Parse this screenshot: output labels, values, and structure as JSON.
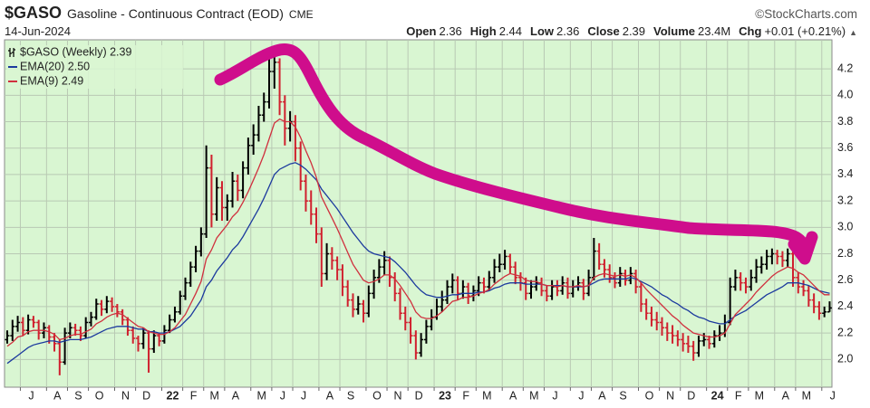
{
  "chart_data": {
    "type": "ohlc",
    "title": "$GASO",
    "subtitle": "Gasoline - Continuous Contract (EOD)",
    "exchange": "CME",
    "source": "©StockCharts.com",
    "date": "14-Jun-2024",
    "quote": [
      {
        "label": "Open",
        "value": 2.36
      },
      {
        "label": "High",
        "value": 2.44
      },
      {
        "label": "Low",
        "value": 2.36
      },
      {
        "label": "Close",
        "value": 2.39
      },
      {
        "label": "Volume",
        "value": "23.4M"
      },
      {
        "label": "Chg",
        "value": "+0.01 (+0.21%)"
      }
    ],
    "categories": [
      null,
      null,
      null,
      "J",
      null,
      null,
      null,
      null,
      "A",
      null,
      null,
      null,
      "S",
      null,
      null,
      null,
      "O",
      null,
      null,
      null,
      null,
      "N",
      null,
      null,
      null,
      "D",
      null,
      null,
      null,
      null,
      "22",
      null,
      null,
      null,
      "F",
      null,
      null,
      null,
      "M",
      null,
      null,
      null,
      "A",
      null,
      null,
      null,
      null,
      "M",
      null,
      null,
      null,
      "J",
      null,
      null,
      null,
      "J",
      null,
      null,
      null,
      null,
      "A",
      null,
      null,
      null,
      "S",
      null,
      null,
      null,
      null,
      "O",
      null,
      null,
      null,
      "N",
      null,
      null,
      null,
      "D",
      null,
      null,
      null,
      null,
      "23",
      null,
      null,
      null,
      "F",
      null,
      null,
      null,
      "M",
      null,
      null,
      null,
      null,
      "A",
      null,
      null,
      null,
      "M",
      null,
      null,
      null,
      "J",
      null,
      null,
      null,
      null,
      "J",
      null,
      null,
      null,
      "A",
      null,
      null,
      null,
      "S",
      null,
      null,
      null,
      null,
      "O",
      null,
      null,
      null,
      "N",
      null,
      null,
      null,
      "D",
      null,
      null,
      null,
      null,
      "24",
      null,
      null,
      null,
      "F",
      null,
      null,
      null,
      "M",
      null,
      null,
      null,
      null,
      "A",
      null,
      null,
      null,
      "M",
      null,
      null,
      null,
      null,
      "J",
      null
    ],
    "ylim": [
      1.79,
      4.42
    ],
    "yticks": [
      {
        "value": 2,
        "label": "2.0"
      },
      2.2,
      2.4,
      2.6,
      2.8,
      {
        "value": 3,
        "label": "3.0"
      },
      3.2,
      3.4,
      3.6,
      3.8,
      {
        "value": 4,
        "label": "4.0"
      },
      4.2
    ],
    "grid": true,
    "background": "#d9f6d2",
    "series": [
      {
        "name": "$GASO (Weekly) 2.39",
        "type": "ohlc",
        "up_color": "#000000",
        "down_color": "#d0202e",
        "open": [
          2.15,
          2.18,
          2.25,
          2.28,
          2.22,
          2.3,
          2.28,
          2.2,
          2.24,
          2.17,
          2.12,
          1.98,
          2.2,
          2.24,
          2.22,
          2.18,
          2.28,
          2.32,
          2.42,
          2.38,
          2.44,
          2.4,
          2.36,
          2.3,
          2.22,
          2.16,
          2.12,
          2.2,
          2.08,
          2.18,
          2.14,
          2.22,
          2.3,
          2.36,
          2.48,
          2.58,
          2.7,
          2.82,
          2.95,
          3.45,
          3.1,
          3.3,
          3.15,
          3.2,
          3.35,
          3.28,
          3.45,
          3.62,
          3.7,
          3.85,
          3.95,
          4.18,
          4.25,
          3.95,
          3.75,
          3.8,
          3.6,
          3.35,
          3.2,
          3.1,
          2.95,
          2.65,
          2.8,
          2.75,
          2.68,
          2.55,
          2.45,
          2.38,
          2.42,
          2.35,
          2.5,
          2.62,
          2.7,
          2.75,
          2.62,
          2.5,
          2.35,
          2.28,
          2.18,
          2.05,
          2.15,
          2.25,
          2.32,
          2.4,
          2.45,
          2.55,
          2.6,
          2.5,
          2.55,
          2.48,
          2.52,
          2.58,
          2.55,
          2.62,
          2.7,
          2.72,
          2.78,
          2.7,
          2.62,
          2.58,
          2.5,
          2.55,
          2.58,
          2.52,
          2.48,
          2.55,
          2.52,
          2.58,
          2.5,
          2.55,
          2.58,
          2.5,
          2.62,
          2.82,
          2.72,
          2.68,
          2.62,
          2.58,
          2.65,
          2.6,
          2.65,
          2.55,
          2.42,
          2.35,
          2.3,
          2.28,
          2.24,
          2.2,
          2.18,
          2.15,
          2.12,
          2.1,
          2.05,
          2.14,
          2.15,
          2.12,
          2.18,
          2.2,
          2.28,
          2.55,
          2.62,
          2.58,
          2.55,
          2.62,
          2.7,
          2.72,
          2.78,
          2.8,
          2.78,
          2.75,
          2.8,
          2.62,
          2.55,
          2.52,
          2.45,
          2.4,
          2.35,
          2.36
        ],
        "high": [
          2.22,
          2.3,
          2.33,
          2.32,
          2.34,
          2.33,
          2.3,
          2.28,
          2.26,
          2.2,
          2.15,
          2.24,
          2.28,
          2.27,
          2.25,
          2.32,
          2.36,
          2.46,
          2.45,
          2.48,
          2.47,
          2.42,
          2.38,
          2.32,
          2.25,
          2.18,
          2.24,
          2.22,
          2.22,
          2.2,
          2.26,
          2.34,
          2.4,
          2.52,
          2.62,
          2.74,
          2.86,
          3.0,
          3.62,
          3.55,
          3.38,
          3.35,
          3.25,
          3.42,
          3.4,
          3.5,
          3.68,
          3.78,
          3.92,
          4.02,
          4.3,
          4.33,
          4.28,
          4.0,
          3.88,
          3.85,
          3.65,
          3.4,
          3.28,
          3.15,
          3.0,
          2.88,
          2.85,
          2.78,
          2.72,
          2.6,
          2.5,
          2.48,
          2.45,
          2.56,
          2.68,
          2.76,
          2.82,
          2.78,
          2.66,
          2.54,
          2.4,
          2.32,
          2.22,
          2.2,
          2.3,
          2.38,
          2.46,
          2.52,
          2.6,
          2.65,
          2.63,
          2.6,
          2.58,
          2.56,
          2.63,
          2.62,
          2.67,
          2.76,
          2.8,
          2.83,
          2.8,
          2.74,
          2.66,
          2.62,
          2.6,
          2.63,
          2.62,
          2.56,
          2.6,
          2.6,
          2.63,
          2.62,
          2.6,
          2.63,
          2.61,
          2.68,
          2.92,
          2.88,
          2.76,
          2.72,
          2.66,
          2.7,
          2.68,
          2.7,
          2.68,
          2.58,
          2.46,
          2.4,
          2.36,
          2.32,
          2.28,
          2.26,
          2.22,
          2.2,
          2.18,
          2.14,
          2.18,
          2.2,
          2.18,
          2.22,
          2.26,
          2.34,
          2.62,
          2.68,
          2.66,
          2.62,
          2.68,
          2.76,
          2.78,
          2.83,
          2.84,
          2.83,
          2.82,
          2.84,
          2.82,
          2.66,
          2.6,
          2.56,
          2.5,
          2.44,
          2.4,
          2.44
        ],
        "low": [
          2.12,
          2.14,
          2.21,
          2.18,
          2.19,
          2.24,
          2.15,
          2.16,
          2.12,
          2.06,
          1.88,
          1.96,
          2.16,
          2.18,
          2.14,
          2.16,
          2.25,
          2.3,
          2.33,
          2.35,
          2.36,
          2.32,
          2.26,
          2.18,
          2.12,
          2.06,
          2.08,
          1.9,
          2.05,
          2.1,
          2.12,
          2.2,
          2.28,
          2.34,
          2.45,
          2.55,
          2.66,
          2.78,
          2.92,
          3.0,
          3.05,
          3.05,
          3.05,
          3.15,
          3.2,
          3.22,
          3.4,
          3.55,
          3.65,
          3.8,
          3.9,
          4.05,
          3.85,
          3.62,
          3.65,
          3.5,
          3.28,
          3.12,
          3.02,
          2.88,
          2.55,
          2.6,
          2.68,
          2.6,
          2.48,
          2.4,
          2.32,
          2.34,
          2.28,
          2.32,
          2.46,
          2.58,
          2.64,
          2.55,
          2.44,
          2.3,
          2.22,
          2.12,
          2.0,
          2.02,
          2.12,
          2.22,
          2.3,
          2.36,
          2.42,
          2.5,
          2.45,
          2.46,
          2.42,
          2.44,
          2.48,
          2.5,
          2.52,
          2.58,
          2.66,
          2.68,
          2.65,
          2.57,
          2.52,
          2.45,
          2.46,
          2.52,
          2.48,
          2.44,
          2.45,
          2.48,
          2.49,
          2.46,
          2.47,
          2.52,
          2.45,
          2.48,
          2.6,
          2.68,
          2.62,
          2.58,
          2.54,
          2.55,
          2.56,
          2.57,
          2.5,
          2.36,
          2.3,
          2.25,
          2.22,
          2.18,
          2.14,
          2.12,
          2.1,
          2.06,
          2.05,
          1.99,
          2.02,
          2.1,
          2.08,
          2.09,
          2.14,
          2.17,
          2.26,
          2.52,
          2.52,
          2.5,
          2.52,
          2.58,
          2.65,
          2.68,
          2.72,
          2.72,
          2.7,
          2.7,
          2.55,
          2.5,
          2.48,
          2.4,
          2.35,
          2.3,
          2.32,
          2.36
        ],
        "close": [
          2.18,
          2.25,
          2.28,
          2.22,
          2.3,
          2.28,
          2.2,
          2.24,
          2.17,
          2.12,
          1.98,
          2.2,
          2.24,
          2.22,
          2.18,
          2.28,
          2.32,
          2.42,
          2.38,
          2.44,
          2.4,
          2.36,
          2.3,
          2.22,
          2.16,
          2.12,
          2.2,
          2.08,
          2.18,
          2.14,
          2.22,
          2.3,
          2.36,
          2.48,
          2.58,
          2.7,
          2.82,
          2.95,
          3.45,
          3.1,
          3.3,
          3.15,
          3.2,
          3.35,
          3.28,
          3.45,
          3.62,
          3.7,
          3.85,
          3.95,
          4.18,
          4.25,
          3.95,
          3.75,
          3.8,
          3.6,
          3.35,
          3.2,
          3.1,
          2.95,
          2.65,
          2.8,
          2.75,
          2.68,
          2.55,
          2.45,
          2.38,
          2.42,
          2.35,
          2.5,
          2.62,
          2.7,
          2.75,
          2.62,
          2.5,
          2.35,
          2.28,
          2.18,
          2.05,
          2.15,
          2.25,
          2.32,
          2.4,
          2.45,
          2.55,
          2.6,
          2.5,
          2.55,
          2.48,
          2.52,
          2.58,
          2.55,
          2.62,
          2.7,
          2.72,
          2.78,
          2.7,
          2.62,
          2.58,
          2.5,
          2.55,
          2.58,
          2.52,
          2.48,
          2.55,
          2.52,
          2.58,
          2.5,
          2.55,
          2.58,
          2.5,
          2.62,
          2.82,
          2.72,
          2.68,
          2.62,
          2.58,
          2.65,
          2.6,
          2.65,
          2.55,
          2.42,
          2.35,
          2.3,
          2.28,
          2.24,
          2.2,
          2.18,
          2.15,
          2.12,
          2.1,
          2.05,
          2.14,
          2.15,
          2.12,
          2.18,
          2.2,
          2.28,
          2.55,
          2.62,
          2.58,
          2.55,
          2.62,
          2.7,
          2.72,
          2.78,
          2.8,
          2.78,
          2.75,
          2.8,
          2.62,
          2.55,
          2.52,
          2.45,
          2.4,
          2.35,
          2.36,
          2.39
        ]
      },
      {
        "name": "EMA(20) 2.50",
        "type": "line",
        "color": "#1c3a9e",
        "values": [
          1.97,
          2.0,
          2.03,
          2.06,
          2.09,
          2.11,
          2.12,
          2.13,
          2.14,
          2.14,
          2.13,
          2.14,
          2.15,
          2.15,
          2.15,
          2.16,
          2.17,
          2.19,
          2.21,
          2.23,
          2.24,
          2.25,
          2.25,
          2.25,
          2.24,
          2.23,
          2.23,
          2.21,
          2.21,
          2.2,
          2.2,
          2.21,
          2.23,
          2.25,
          2.29,
          2.33,
          2.39,
          2.45,
          2.55,
          2.6,
          2.67,
          2.72,
          2.77,
          2.83,
          2.87,
          2.93,
          3.0,
          3.07,
          3.14,
          3.22,
          3.31,
          3.4,
          3.44,
          3.46,
          3.48,
          3.49,
          3.47,
          3.44,
          3.4,
          3.36,
          3.29,
          3.24,
          3.19,
          3.14,
          3.08,
          3.02,
          2.96,
          2.91,
          2.86,
          2.82,
          2.8,
          2.79,
          2.78,
          2.77,
          2.74,
          2.7,
          2.66,
          2.61,
          2.56,
          2.52,
          2.49,
          2.48,
          2.47,
          2.47,
          2.48,
          2.49,
          2.49,
          2.5,
          2.5,
          2.5,
          2.51,
          2.51,
          2.52,
          2.54,
          2.55,
          2.57,
          2.58,
          2.58,
          2.58,
          2.57,
          2.57,
          2.57,
          2.57,
          2.56,
          2.56,
          2.56,
          2.56,
          2.55,
          2.55,
          2.55,
          2.55,
          2.56,
          2.58,
          2.6,
          2.61,
          2.61,
          2.61,
          2.61,
          2.61,
          2.62,
          2.61,
          2.59,
          2.57,
          2.55,
          2.52,
          2.49,
          2.47,
          2.44,
          2.42,
          2.39,
          2.37,
          2.34,
          2.32,
          2.31,
          2.29,
          2.28,
          2.27,
          2.27,
          2.3,
          2.33,
          2.35,
          2.37,
          2.4,
          2.43,
          2.46,
          2.49,
          2.51,
          2.53,
          2.55,
          2.58,
          2.58,
          2.58,
          2.57,
          2.56,
          2.54,
          2.52,
          2.51,
          2.5
        ]
      },
      {
        "name": "EMA(9) 2.49",
        "type": "line",
        "color": "#d0303e",
        "values": [
          2.1,
          2.13,
          2.17,
          2.18,
          2.21,
          2.22,
          2.22,
          2.22,
          2.21,
          2.19,
          2.15,
          2.16,
          2.18,
          2.19,
          2.19,
          2.21,
          2.23,
          2.27,
          2.29,
          2.32,
          2.34,
          2.35,
          2.34,
          2.31,
          2.28,
          2.25,
          2.24,
          2.21,
          2.2,
          2.19,
          2.19,
          2.21,
          2.24,
          2.29,
          2.34,
          2.42,
          2.5,
          2.59,
          2.76,
          2.83,
          2.92,
          2.97,
          3.02,
          3.08,
          3.12,
          3.19,
          3.27,
          3.36,
          3.45,
          3.55,
          3.67,
          3.79,
          3.82,
          3.8,
          3.8,
          3.76,
          3.68,
          3.58,
          3.49,
          3.38,
          3.23,
          3.15,
          3.07,
          2.99,
          2.9,
          2.81,
          2.72,
          2.66,
          2.6,
          2.58,
          2.59,
          2.61,
          2.64,
          2.64,
          2.61,
          2.56,
          2.5,
          2.44,
          2.36,
          2.32,
          2.31,
          2.31,
          2.33,
          2.36,
          2.4,
          2.44,
          2.45,
          2.47,
          2.47,
          2.48,
          2.5,
          2.51,
          2.53,
          2.57,
          2.6,
          2.63,
          2.65,
          2.64,
          2.63,
          2.6,
          2.59,
          2.59,
          2.57,
          2.56,
          2.56,
          2.55,
          2.56,
          2.55,
          2.55,
          2.56,
          2.55,
          2.56,
          2.62,
          2.64,
          2.65,
          2.64,
          2.63,
          2.64,
          2.63,
          2.64,
          2.62,
          2.58,
          2.53,
          2.49,
          2.45,
          2.41,
          2.37,
          2.33,
          2.3,
          2.26,
          2.23,
          2.2,
          2.19,
          2.18,
          2.17,
          2.17,
          2.18,
          2.2,
          2.27,
          2.34,
          2.38,
          2.42,
          2.46,
          2.51,
          2.55,
          2.59,
          2.63,
          2.66,
          2.68,
          2.7,
          2.69,
          2.66,
          2.64,
          2.6,
          2.56,
          2.52,
          2.49,
          2.49
        ]
      }
    ]
  }
}
